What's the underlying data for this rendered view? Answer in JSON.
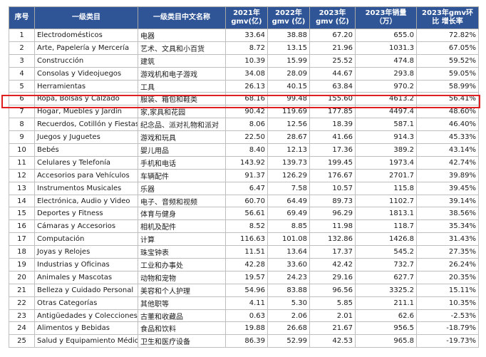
{
  "headers": {
    "index": "序号",
    "category": "一级类目",
    "category_cn": "一级类目中文名称",
    "gmv2021": "2021年 gmv(亿)",
    "gmv2022": "2022年gmv (亿)",
    "gmv2023": "2023年gmv (亿)",
    "sales2023": "2023年销量（万）",
    "growth": "2023年gmv环比 增长率"
  },
  "rows": [
    {
      "idx": "1",
      "cat": "Electrodomésticos",
      "cn": "电器",
      "g21": "33.64",
      "g22": "38.88",
      "g23": "67.20",
      "sales": "655.0",
      "growth": "72.82%"
    },
    {
      "idx": "2",
      "cat": "Arte, Papelería y Mercería",
      "cn": "艺术、文具和小百货",
      "g21": "8.72",
      "g22": "13.15",
      "g23": "21.96",
      "sales": "1031.3",
      "growth": "67.05%"
    },
    {
      "idx": "3",
      "cat": "Construcción",
      "cn": "建筑",
      "g21": "10.39",
      "g22": "15.99",
      "g23": "25.52",
      "sales": "474.8",
      "growth": "59.52%"
    },
    {
      "idx": "4",
      "cat": "Consolas y Videojuegos",
      "cn": "游戏机和电子游戏",
      "g21": "34.08",
      "g22": "28.09",
      "g23": "44.67",
      "sales": "293.8",
      "growth": "59.05%"
    },
    {
      "idx": "5",
      "cat": "Herramientas",
      "cn": "工具",
      "g21": "26.13",
      "g22": "40.15",
      "g23": "63.84",
      "sales": "970.2",
      "growth": "58.99%"
    },
    {
      "idx": "6",
      "cat": "Ropa, Bolsas y Calzado",
      "cn": "服装、箱包和鞋类",
      "g21": "68.16",
      "g22": "99.48",
      "g23": "155.60",
      "sales": "4613.2",
      "growth": "56.41%"
    },
    {
      "idx": "7",
      "cat": "Hogar, Muebles y Jardín",
      "cn": "家,家具和花园",
      "g21": "90.42",
      "g22": "119.69",
      "g23": "177.85",
      "sales": "4497.4",
      "growth": "48.60%"
    },
    {
      "idx": "8",
      "cat": "Recuerdos, Cotillón y Fiestas",
      "cn": "纪念品、派对礼物和派对",
      "g21": "8.06",
      "g22": "12.56",
      "g23": "18.39",
      "sales": "587.1",
      "growth": "46.40%"
    },
    {
      "idx": "9",
      "cat": "Juegos y Juguetes",
      "cn": "游戏和玩具",
      "g21": "22.50",
      "g22": "28.67",
      "g23": "41.66",
      "sales": "914.3",
      "growth": "45.33%"
    },
    {
      "idx": "10",
      "cat": "Bebés",
      "cn": "婴儿用品",
      "g21": "8.40",
      "g22": "12.13",
      "g23": "17.36",
      "sales": "389.2",
      "growth": "43.14%"
    },
    {
      "idx": "11",
      "cat": "Celulares y Telefonía",
      "cn": "手机和电话",
      "g21": "143.92",
      "g22": "139.73",
      "g23": "199.45",
      "sales": "1973.4",
      "growth": "42.74%"
    },
    {
      "idx": "12",
      "cat": "Accesorios para Vehículos",
      "cn": "车辆配件",
      "g21": "91.37",
      "g22": "126.29",
      "g23": "176.67",
      "sales": "2701.7",
      "growth": "39.89%"
    },
    {
      "idx": "13",
      "cat": "Instrumentos Musicales",
      "cn": "乐器",
      "g21": "6.47",
      "g22": "7.58",
      "g23": "10.57",
      "sales": "115.8",
      "growth": "39.45%"
    },
    {
      "idx": "14",
      "cat": "Electrónica, Audio y Video",
      "cn": "电子、音频和视频",
      "g21": "60.70",
      "g22": "64.49",
      "g23": "89.73",
      "sales": "1102.7",
      "growth": "39.14%"
    },
    {
      "idx": "15",
      "cat": "Deportes y Fitness",
      "cn": "体育与健身",
      "g21": "56.61",
      "g22": "69.49",
      "g23": "96.29",
      "sales": "1813.1",
      "growth": "38.56%"
    },
    {
      "idx": "16",
      "cat": "Cámaras y Accesorios",
      "cn": "相机及配件",
      "g21": "8.52",
      "g22": "8.85",
      "g23": "11.98",
      "sales": "118.7",
      "growth": "35.34%"
    },
    {
      "idx": "17",
      "cat": "Computación",
      "cn": "计算",
      "g21": "116.63",
      "g22": "101.08",
      "g23": "132.86",
      "sales": "1426.8",
      "growth": "31.43%"
    },
    {
      "idx": "18",
      "cat": "Joyas y Relojes",
      "cn": "珠宝钟表",
      "g21": "11.51",
      "g22": "13.64",
      "g23": "17.37",
      "sales": "545.2",
      "growth": "27.35%"
    },
    {
      "idx": "19",
      "cat": "Industrias y Oficinas",
      "cn": "工业和办事处",
      "g21": "42.28",
      "g22": "33.60",
      "g23": "42.42",
      "sales": "732.7",
      "growth": "26.24%"
    },
    {
      "idx": "20",
      "cat": "Animales y Mascotas",
      "cn": "动物和宠物",
      "g21": "19.57",
      "g22": "24.23",
      "g23": "29.16",
      "sales": "627.7",
      "growth": "20.35%"
    },
    {
      "idx": "21",
      "cat": "Belleza y Cuidado Personal",
      "cn": "美容和个人护理",
      "g21": "54.96",
      "g22": "83.88",
      "g23": "96.56",
      "sales": "3325.2",
      "growth": "15.11%"
    },
    {
      "idx": "22",
      "cat": "Otras Categorías",
      "cn": "其他职等",
      "g21": "4.11",
      "g22": "5.30",
      "g23": "5.85",
      "sales": "211.1",
      "growth": "10.35%"
    },
    {
      "idx": "23",
      "cat": "Antigüedades y Colecciones",
      "cn": "古董和收藏品",
      "g21": "0.63",
      "g22": "2.06",
      "g23": "2.01",
      "sales": "62.6",
      "growth": "-2.53%"
    },
    {
      "idx": "24",
      "cat": "Alimentos y Bebidas",
      "cn": "食品和饮料",
      "g21": "19.88",
      "g22": "26.68",
      "g23": "21.67",
      "sales": "956.5",
      "growth": "-18.79%"
    },
    {
      "idx": "25",
      "cat": "Salud y Equipamiento Médico",
      "cn": "卫生和医疗设备",
      "g21": "86.39",
      "g22": "52.99",
      "g23": "42.53",
      "sales": "965.8",
      "growth": "-19.73%"
    }
  ],
  "highlight_row": "6",
  "colors": {
    "header_bg": "#2f5597",
    "highlight_border": "#e02020"
  }
}
